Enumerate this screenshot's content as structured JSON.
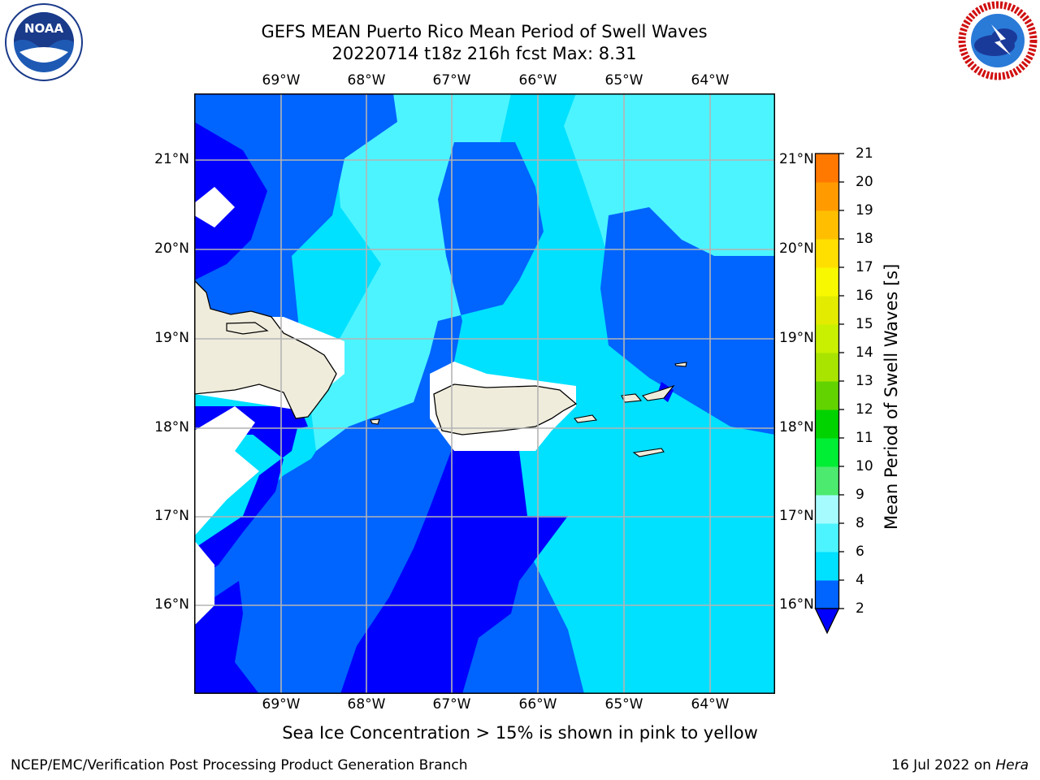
{
  "title": {
    "line1": "GEFS MEAN Puerto Rico Mean Period of Swell Waves",
    "line2": "20220714 t18z 216h fcst   Max: 8.31"
  },
  "map": {
    "lon_labels": [
      "69°W",
      "68°W",
      "67°W",
      "66°W",
      "65°W",
      "64°W"
    ],
    "lat_labels": [
      "21°N",
      "20°N",
      "19°N",
      "18°N",
      "17°N",
      "16°N"
    ],
    "icons": [
      "noaa-logo",
      "nws-logo"
    ]
  },
  "colorbar": {
    "label": "Mean Period of Swell Waves [s]",
    "ticks": [
      "21",
      "20",
      "19",
      "18",
      "17",
      "16",
      "15",
      "14",
      "13",
      "12",
      "11",
      "10",
      "9",
      "8",
      "6",
      "4",
      "2"
    ],
    "colors": [
      "#0000ff",
      "#0064ff",
      "#00e0ff",
      "#4cf4ff",
      "#a6fbff",
      "#4cea6e",
      "#00ee34",
      "#00d300",
      "#63d300",
      "#a8e400",
      "#c8f000",
      "#e3ec00",
      "#f8f800",
      "#ffdf00",
      "#ffbf00",
      "#ff9b00",
      "#ff7800",
      "#ff5a00",
      "#ff3500",
      "#ff0000"
    ]
  },
  "caption": "Sea Ice Concentration > 15% is shown in pink to yellow",
  "footer": {
    "left": "NCEP/EMC/Verification Post Processing Product Generation Branch",
    "date": "16 Jul 2022 on ",
    "machine": "Hera"
  }
}
